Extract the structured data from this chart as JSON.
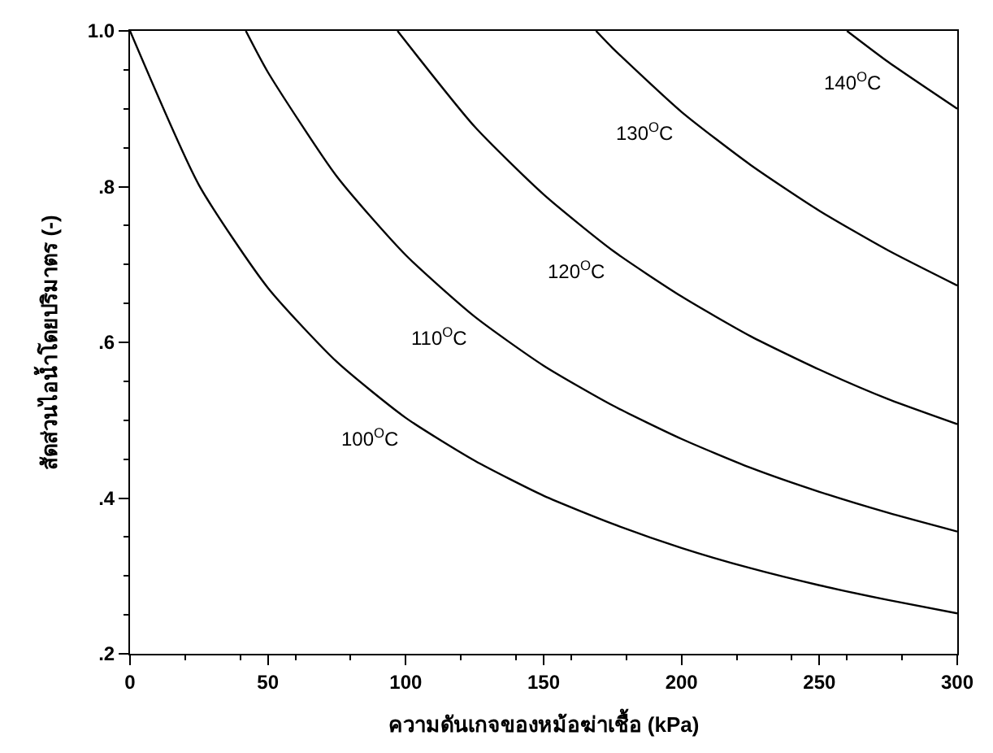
{
  "chart_data": {
    "type": "line",
    "xlabel": "ความดันเกจของหม้อฆ่าเชื้อ (kPa)",
    "ylabel": "สัดส่วนไอน้ำโดยปริมาตร (-)",
    "xlim": [
      0,
      300
    ],
    "xticks": [
      0,
      50,
      100,
      150,
      200,
      250,
      300
    ],
    "ylim": [
      0.2,
      1.0
    ],
    "yticks": [
      {
        "value": 0.2,
        "label": ".2"
      },
      {
        "value": 0.4,
        "label": ".4"
      },
      {
        "value": 0.6,
        "label": ".6"
      },
      {
        "value": 0.8,
        "label": ".8"
      },
      {
        "value": 1.0,
        "label": "1.0"
      }
    ],
    "legend": false,
    "marker": "none",
    "line_style": "solid",
    "series": [
      {
        "name": "100$^{O}$C",
        "color": "#000000",
        "x": [
          0,
          25,
          50,
          75,
          100,
          125,
          150,
          175,
          200,
          225,
          250,
          275,
          300
        ],
        "values": [
          1.0,
          0.802,
          0.67,
          0.575,
          0.503,
          0.448,
          0.403,
          0.367,
          0.336,
          0.31,
          0.288,
          0.269,
          0.252
        ]
      },
      {
        "name": "110$^{O}$C",
        "color": "#000000",
        "x": [
          42,
          50,
          75,
          100,
          125,
          150,
          175,
          200,
          225,
          250,
          275,
          300
        ],
        "values": [
          1.0,
          0.947,
          0.813,
          0.712,
          0.633,
          0.57,
          0.519,
          0.476,
          0.439,
          0.408,
          0.381,
          0.357
        ]
      },
      {
        "name": "120$^{O}$C",
        "color": "#000000",
        "x": [
          97,
          125,
          150,
          175,
          200,
          225,
          250,
          275,
          300
        ],
        "values": [
          1.0,
          0.877,
          0.79,
          0.718,
          0.659,
          0.608,
          0.565,
          0.527,
          0.495
        ]
      },
      {
        "name": "130$^{O}$C",
        "color": "#000000",
        "x": [
          169,
          175,
          200,
          225,
          250,
          275,
          300
        ],
        "values": [
          1.0,
          0.978,
          0.896,
          0.828,
          0.769,
          0.718,
          0.673
        ]
      },
      {
        "name": "140$^{O}$C",
        "color": "#000000",
        "x": [
          260,
          275,
          300
        ],
        "values": [
          1.0,
          0.96,
          0.9
        ]
      }
    ]
  }
}
